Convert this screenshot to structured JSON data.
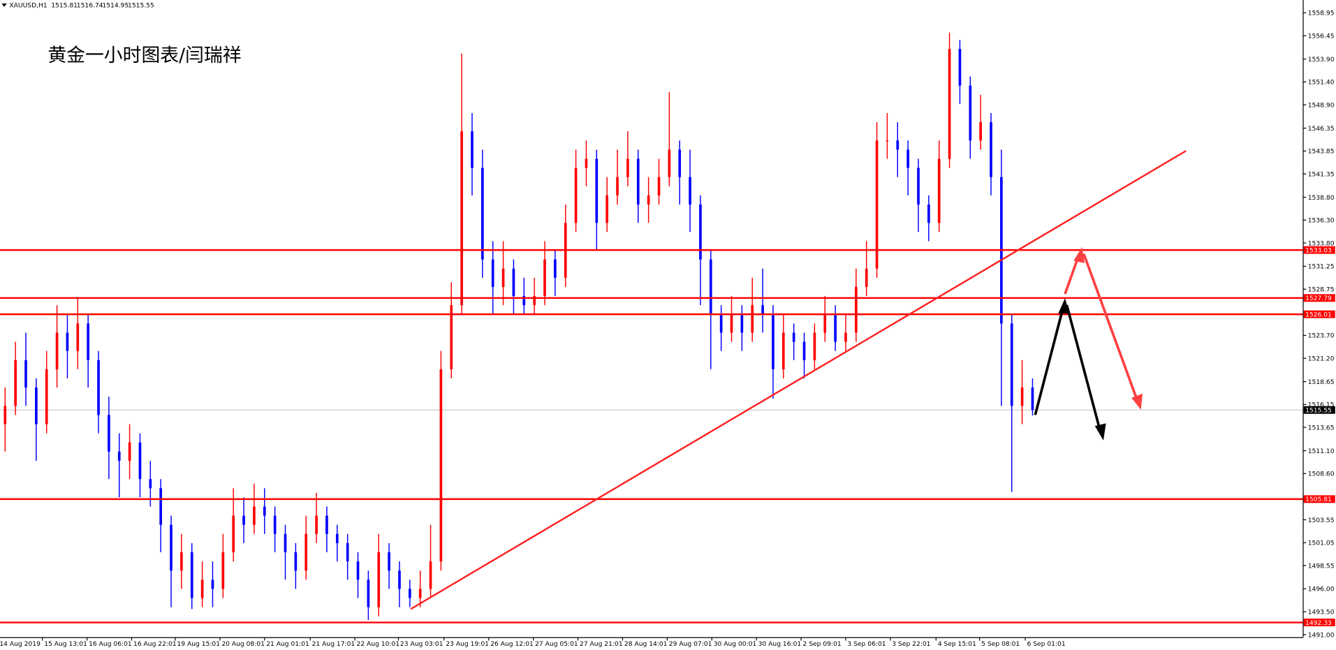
{
  "chart_data": {
    "type": "candlestick",
    "symbol": "XAUUSD,H1",
    "quote": [
      1515.81,
      1516.74,
      1514.95,
      1515.55
    ],
    "title": "黄金一小时图表/闫瑞祥",
    "up_color": "#ff0000",
    "down_color": "#0000ff",
    "open": [
      1514,
      1516,
      1521,
      1518,
      1514,
      1520,
      1524,
      1522,
      1525,
      1521,
      1515,
      1511,
      1510,
      1512,
      1508,
      1507,
      1503,
      1498,
      1500,
      1495,
      1497,
      1496,
      1500,
      1504,
      1503,
      1505,
      1504,
      1502,
      1500,
      1498,
      1502,
      1504,
      1502,
      1501,
      1499,
      1497,
      1494,
      1500,
      1498,
      1496,
      1495,
      1496,
      1499,
      1520,
      1527,
      1546,
      1542,
      1532,
      1529,
      1531,
      1528,
      1527,
      1528,
      1532,
      1530,
      1536,
      1542,
      1543,
      1536,
      1539,
      1541,
      1543,
      1538,
      1539,
      1541,
      1544,
      1541,
      1538,
      1532,
      1526,
      1524,
      1526,
      1524,
      1527,
      1526,
      1520,
      1524,
      1523,
      1521,
      1524,
      1526,
      1523,
      1524,
      1529,
      1531,
      1545,
      1545,
      1544,
      1542,
      1538,
      1536,
      1543,
      1555,
      1551,
      1545,
      1547,
      1541,
      1525,
      1516,
      1518
    ],
    "high": [
      1518,
      1523,
      1524,
      1519,
      1522,
      1527,
      1526,
      1527.9,
      1526,
      1522,
      1517,
      1513,
      1514,
      1513,
      1510,
      1508,
      1504,
      1502,
      1501,
      1499,
      1499,
      1502,
      1507,
      1506,
      1507.5,
      1507,
      1505,
      1503,
      1501,
      1504,
      1506.5,
      1505,
      1503,
      1502,
      1500,
      1498,
      1502,
      1501,
      1499,
      1497,
      1498,
      1503,
      1522,
      1529.5,
      1554.5,
      1548,
      1544,
      1534,
      1534,
      1532,
      1530,
      1530,
      1534,
      1533,
      1538,
      1544,
      1545,
      1544,
      1541,
      1544,
      1546,
      1544,
      1541,
      1543,
      1550.3,
      1545,
      1544,
      1539,
      1533,
      1527,
      1528,
      1527,
      1530,
      1531,
      1527,
      1526,
      1525,
      1524,
      1525,
      1528,
      1527,
      1526,
      1531,
      1534,
      1547,
      1548,
      1547,
      1545,
      1543,
      1539,
      1545,
      1556.8,
      1556,
      1552,
      1550,
      1548,
      1544,
      1526,
      1521,
      1519
    ],
    "low": [
      1511,
      1515,
      1516,
      1510,
      1513,
      1518,
      1519,
      1520,
      1518,
      1513,
      1508,
      1506,
      1508,
      1506,
      1505,
      1500,
      1494,
      1496,
      1493.8,
      1494,
      1494,
      1495,
      1499,
      1501,
      1502,
      1502,
      1500,
      1497,
      1496,
      1497,
      1501,
      1500,
      1499,
      1497,
      1495,
      1492.6,
      1493,
      1496,
      1494,
      1494,
      1494,
      1495,
      1498,
      1519,
      1526,
      1539,
      1530,
      1526,
      1527,
      1526,
      1526,
      1526,
      1527,
      1528,
      1529,
      1535,
      1540,
      1533,
      1535,
      1538,
      1540,
      1536,
      1536,
      1538,
      1540,
      1538,
      1535,
      1527,
      1520,
      1522,
      1523,
      1522,
      1523,
      1524,
      1516.8,
      1519,
      1521,
      1519,
      1520,
      1523,
      1522,
      1522,
      1523,
      1528,
      1530,
      1543,
      1541,
      1539,
      1535,
      1534,
      1535,
      1542,
      1549,
      1543,
      1544,
      1539,
      1516,
      1506.6,
      1514,
      1514.95
    ],
    "close": [
      1516,
      1521,
      1518,
      1514,
      1520,
      1524,
      1522,
      1525,
      1521,
      1515,
      1511,
      1510,
      1512,
      1508,
      1507,
      1503,
      1498,
      1500,
      1495,
      1497,
      1496,
      1500,
      1504,
      1503,
      1505,
      1504,
      1502,
      1500,
      1498,
      1502,
      1504,
      1502,
      1501,
      1499,
      1497,
      1494,
      1500,
      1498,
      1496,
      1495,
      1496,
      1499,
      1520,
      1527,
      1546,
      1542,
      1532,
      1529,
      1531,
      1528,
      1527,
      1528,
      1532,
      1530,
      1536,
      1542,
      1543,
      1536,
      1539,
      1541,
      1543,
      1538,
      1539,
      1541,
      1544,
      1541,
      1538,
      1532,
      1526,
      1524,
      1526,
      1524,
      1527,
      1526,
      1520,
      1524,
      1523,
      1521,
      1524,
      1526,
      1523,
      1524,
      1529,
      1531,
      1545,
      1545,
      1544,
      1542,
      1538,
      1536,
      1543,
      1555,
      1551,
      1545,
      1547,
      1541,
      1525,
      1516,
      1518,
      1515.55
    ],
    "xlim": [
      -0.49,
      125.04
    ],
    "xticks": [
      {
        "value": -0.7,
        "label": "14 Aug 2019"
      },
      {
        "value": 3.6,
        "label": "15 Aug 13:01"
      },
      {
        "value": 7.9,
        "label": "16 Aug 06:01"
      },
      {
        "value": 12.2,
        "label": "16 Aug 22:01"
      },
      {
        "value": 16.4,
        "label": "19 Aug 15:01"
      },
      {
        "value": 20.7,
        "label": "20 Aug 08:01"
      },
      {
        "value": 25.0,
        "label": "21 Aug 01:01"
      },
      {
        "value": 29.4,
        "label": "21 Aug 17:01"
      },
      {
        "value": 33.7,
        "label": "22 Aug 10:01"
      },
      {
        "value": 37.9,
        "label": "23 Aug 03:01"
      },
      {
        "value": 42.3,
        "label": "23 Aug 19:01"
      },
      {
        "value": 46.6,
        "label": "26 Aug 12:01"
      },
      {
        "value": 50.9,
        "label": "27 Aug 05:01"
      },
      {
        "value": 55.2,
        "label": "27 Aug 21:01"
      },
      {
        "value": 59.5,
        "label": "28 Aug 14:01"
      },
      {
        "value": 63.8,
        "label": "29 Aug 07:01"
      },
      {
        "value": 68.1,
        "label": "30 Aug 00:01"
      },
      {
        "value": 72.4,
        "label": "30 Aug 16:01"
      },
      {
        "value": 76.7,
        "label": "2 Sep 09:01"
      },
      {
        "value": 81.0,
        "label": "3 Sep 06:01"
      },
      {
        "value": 85.3,
        "label": "3 Sep 22:01"
      },
      {
        "value": 89.7,
        "label": "4 Sep 15:01"
      },
      {
        "value": 93.9,
        "label": "5 Sep 08:01"
      },
      {
        "value": 98.3,
        "label": "6 Sep 01:01"
      }
    ],
    "ylim": [
      1490.72,
      1560.35
    ],
    "yticks": [
      1558.95,
      1556.45,
      {
        "value": 1553.9,
        "label": "1553.90"
      },
      {
        "value": 1551.4,
        "label": "1551.40"
      },
      {
        "value": 1548.9,
        "label": "1548.90"
      },
      1546.35,
      1543.85,
      1541.35,
      {
        "value": 1538.8,
        "label": "1538.80"
      },
      {
        "value": 1536.3,
        "label": "1536.30"
      },
      {
        "value": 1533.8,
        "label": "1533.80"
      },
      1531.25,
      1528.75,
      {
        "value": 1523.7,
        "label": "1523.70"
      },
      {
        "value": 1521.2,
        "label": "1521.20"
      },
      1518.65,
      1516.15,
      1513.65,
      {
        "value": 1511.1,
        "label": "1511.10"
      },
      {
        "value": 1508.6,
        "label": "1508.60"
      },
      1503.55,
      1501.05,
      1498.55,
      {
        "value": 1496,
        "label": "1496.00"
      },
      {
        "value": 1493.5,
        "label": "1493.50"
      },
      {
        "value": 1491,
        "label": "1491.00"
      }
    ],
    "levels": [
      {
        "value": 1533.03,
        "color": "#ff0000"
      },
      {
        "value": 1527.79,
        "color": "#ff0000"
      },
      {
        "value": 1526.01,
        "color": "#ff0000"
      },
      {
        "value": 1505.81,
        "color": "#ff0000"
      },
      {
        "value": 1492.33,
        "color": "#ff0000"
      }
    ],
    "last_price": 1515.55
  }
}
